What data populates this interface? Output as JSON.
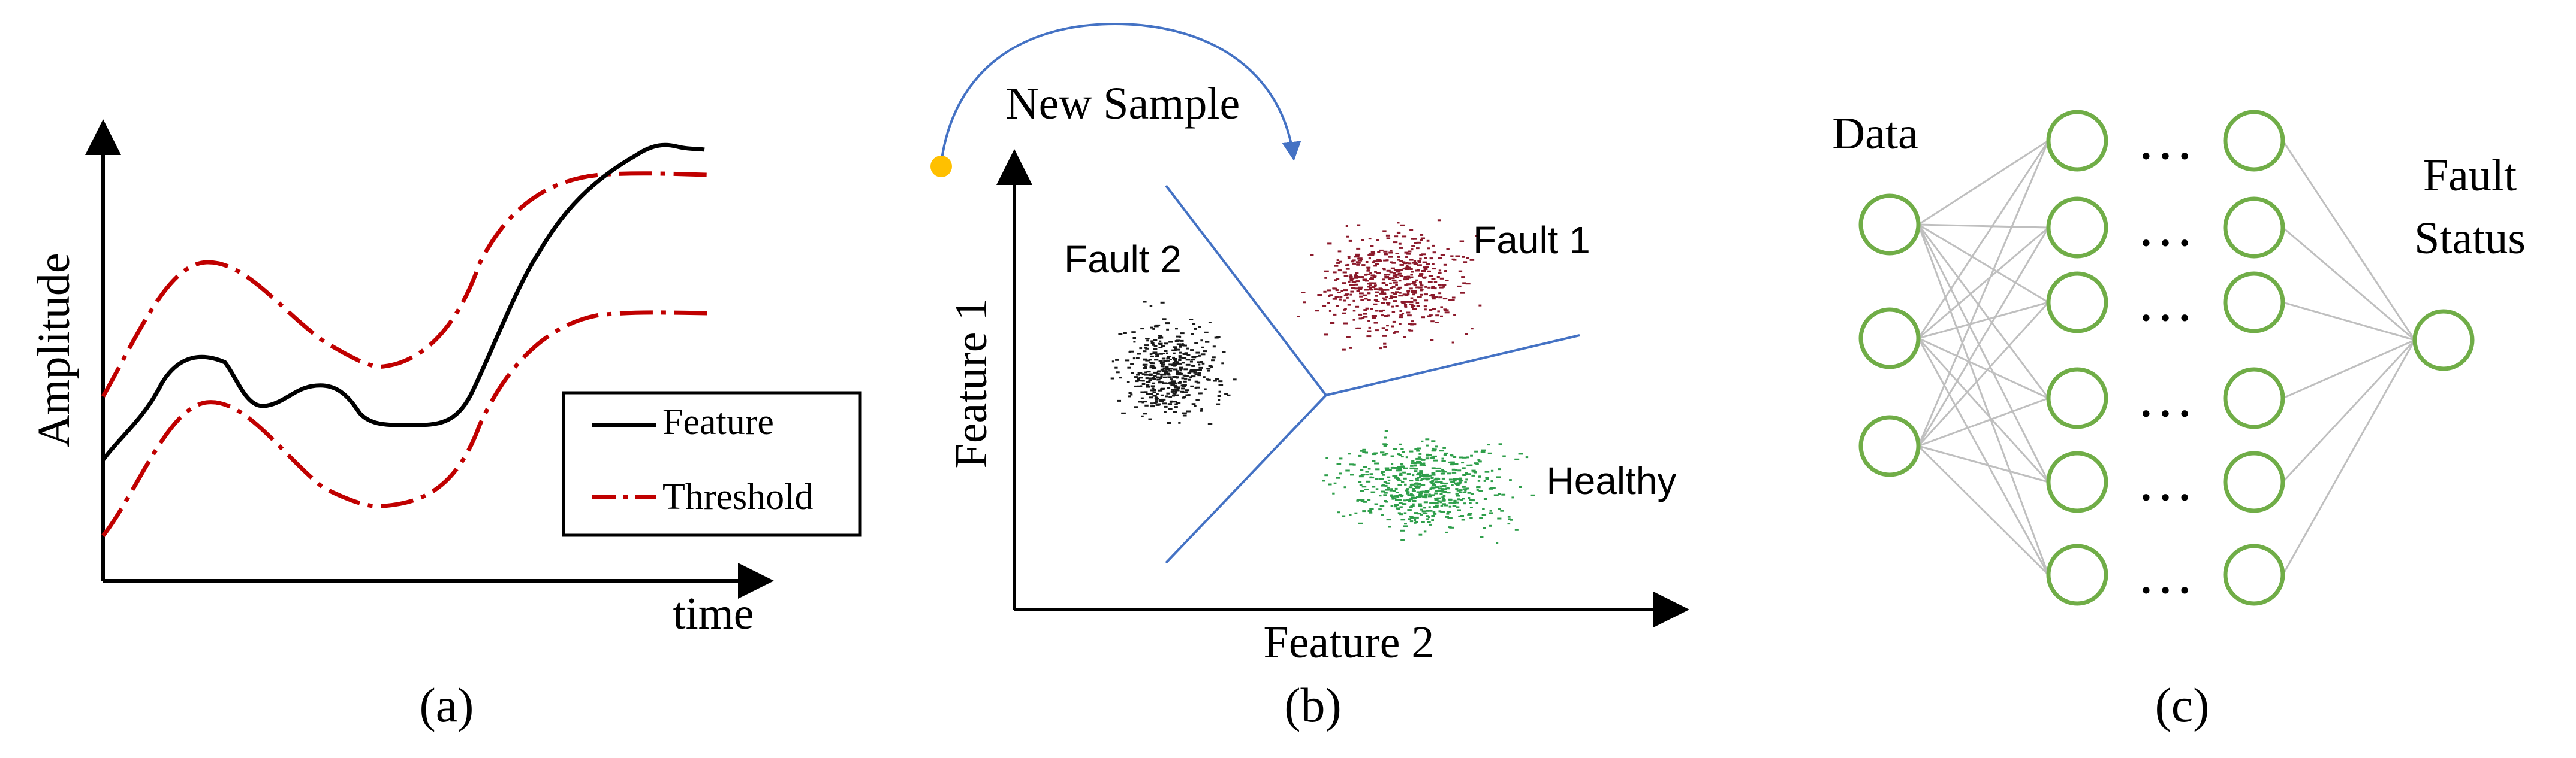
{
  "colors": {
    "axis": "#000000",
    "feature_line": "#000000",
    "threshold_line": "#C00000",
    "boundary_line": "#4472C4",
    "arrow_blue": "#4472C4",
    "new_sample_dot": "#FFC000",
    "fault1_points": "#8B1A2B",
    "fault2_points": "#1A1A1A",
    "healthy_points": "#2E9E4A",
    "nn_node": "#70AD47",
    "nn_edge": "#BFBFBF"
  },
  "panel_a": {
    "caption": "(a)",
    "ylabel": "Amplitude",
    "xlabel": "time",
    "legend": {
      "feature": "Feature",
      "threshold": "Threshold"
    }
  },
  "panel_b": {
    "caption": "(b)",
    "xlabel": "Feature 2",
    "ylabel": "Feature 1",
    "new_sample": "New Sample",
    "clusters": {
      "fault1": "Fault 1",
      "fault2": "Fault 2",
      "healthy": "Healthy"
    }
  },
  "panel_c": {
    "caption": "(c)",
    "input_label": "Data",
    "output_label_line1": "Fault",
    "output_label_line2": "Status",
    "ellipsis": "…",
    "layer_sizes": [
      3,
      6,
      6,
      1
    ],
    "node_icon": "circle-node"
  }
}
